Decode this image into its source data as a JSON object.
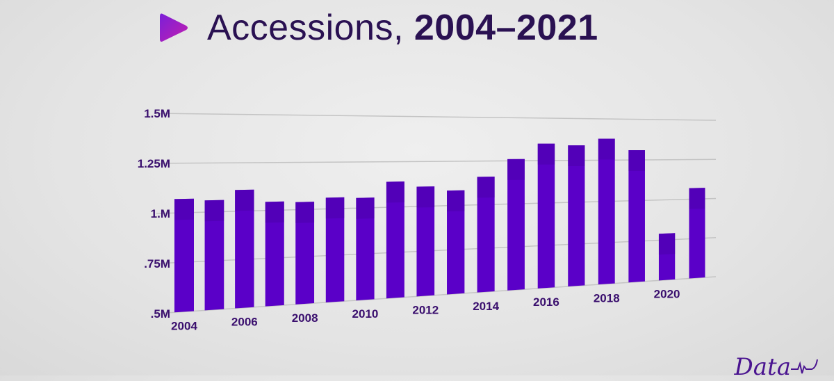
{
  "title": {
    "regular": "Accessions, ",
    "bold": "2004–2021",
    "icon": "play-icon"
  },
  "logo": {
    "text": "Data",
    "icon": "heartbeat-icon"
  },
  "colors": {
    "bar": "#5a00c8",
    "bar_top": "#4a00a8",
    "text": "#3a0f6e",
    "title": "#2a1152",
    "grid": "#c4c4c4"
  },
  "chart_data": {
    "type": "bar",
    "title": "Accessions, 2004–2021",
    "xlabel": "",
    "ylabel": "",
    "categories": [
      "2004",
      "2005",
      "2006",
      "2007",
      "2008",
      "2009",
      "2010",
      "2011",
      "2012",
      "2013",
      "2014",
      "2015",
      "2016",
      "2017",
      "2018",
      "2019",
      "2020",
      "2021"
    ],
    "x_tick_labels": [
      "2004",
      "",
      "2006",
      "",
      "2008",
      "",
      "2010",
      "",
      "2012",
      "",
      "2014",
      "",
      "2016",
      "",
      "2018",
      "",
      "2020",
      ""
    ],
    "values": [
      1.07,
      1.06,
      1.11,
      1.045,
      1.04,
      1.06,
      1.055,
      1.14,
      1.11,
      1.085,
      1.16,
      1.26,
      1.35,
      1.34,
      1.38,
      1.31,
      0.79,
      1.07
    ],
    "units": "millions",
    "ylim": [
      0.5,
      1.5
    ],
    "y_ticks": [
      0.5,
      0.75,
      1.0,
      1.25,
      1.5
    ],
    "y_tick_labels": [
      ".5M",
      ".75M",
      "1.M",
      "1.25M",
      "1.5M"
    ],
    "grid": true,
    "legend": "none"
  }
}
